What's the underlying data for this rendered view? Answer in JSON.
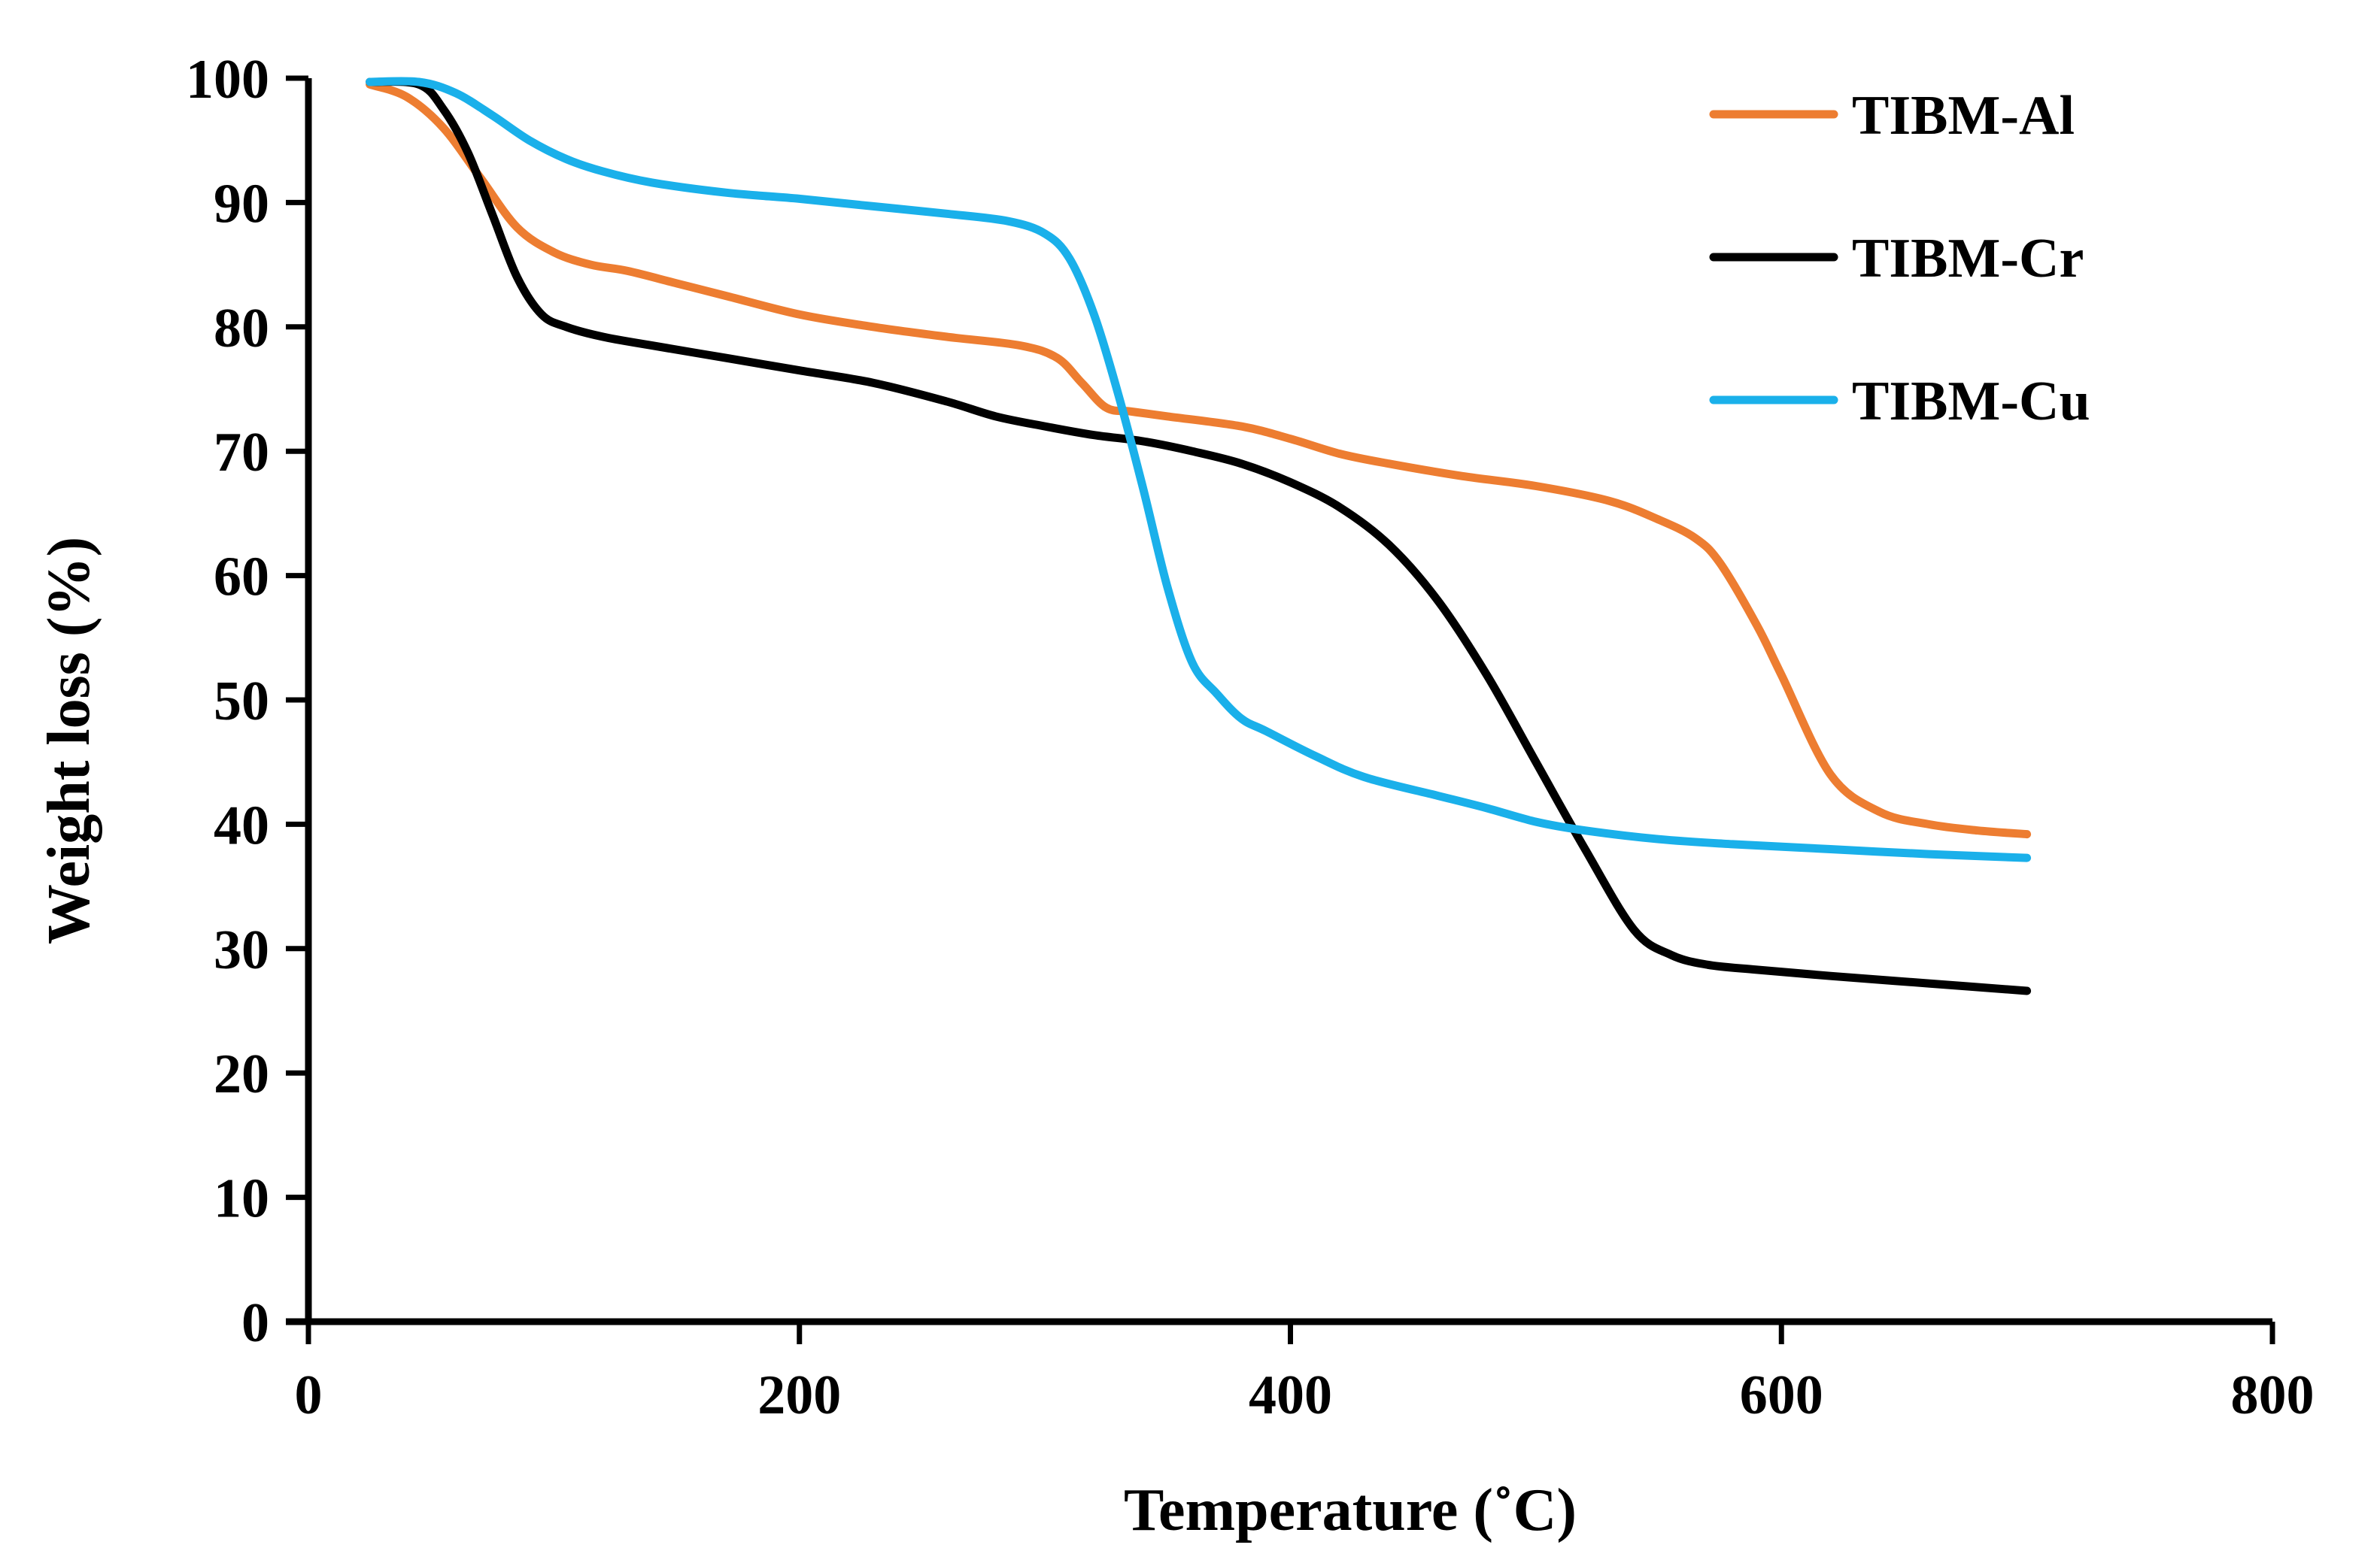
{
  "chart_data": {
    "type": "line",
    "title": "",
    "xlabel": "Temperature (˚C)",
    "ylabel": "Weight loss (%)",
    "xlim": [
      0,
      800
    ],
    "ylim": [
      0,
      100
    ],
    "xticks": [
      0,
      200,
      400,
      600,
      800
    ],
    "yticks": [
      0,
      10,
      20,
      30,
      40,
      50,
      60,
      70,
      80,
      90,
      100
    ],
    "grid": false,
    "legend_position": "top-right",
    "series": [
      {
        "name": "TIBM-Al",
        "color": "#ED7D31",
        "x": [
          25,
          40,
          55,
          70,
          85,
          100,
          115,
          130,
          150,
          170,
          200,
          230,
          260,
          290,
          305,
          315,
          325,
          335,
          350,
          380,
          400,
          420,
          440,
          470,
          500,
          530,
          550,
          565,
          575,
          590,
          600,
          620,
          640,
          660,
          680,
          700
        ],
        "y": [
          99.5,
          98.5,
          96,
          92,
          88,
          86,
          85,
          84.5,
          83.5,
          82.5,
          81,
          80,
          79.2,
          78.5,
          77.5,
          75.5,
          73.5,
          73.2,
          72.8,
          72,
          71,
          69.8,
          69,
          68,
          67.2,
          66,
          64.5,
          63,
          61,
          56,
          52,
          44,
          41,
          40,
          39.5,
          39.2
        ]
      },
      {
        "name": "TIBM-Cr",
        "color": "#000000",
        "x": [
          25,
          45,
          55,
          65,
          75,
          85,
          95,
          105,
          120,
          140,
          170,
          200,
          230,
          260,
          280,
          300,
          320,
          340,
          360,
          380,
          400,
          420,
          440,
          460,
          480,
          500,
          520,
          540,
          555,
          570,
          590,
          620,
          660,
          700
        ],
        "y": [
          99.7,
          99.5,
          97.5,
          94,
          89,
          84,
          81,
          80,
          79.2,
          78.5,
          77.5,
          76.5,
          75.5,
          74,
          72.8,
          72,
          71.3,
          70.8,
          70,
          69,
          67.5,
          65.5,
          62.5,
          58,
          52,
          45,
          38,
          31.5,
          29.5,
          28.7,
          28.3,
          27.8,
          27.2,
          26.6
        ]
      },
      {
        "name": "TIBM-Cu",
        "color": "#1AB0EA",
        "x": [
          25,
          45,
          60,
          75,
          90,
          105,
          120,
          140,
          170,
          200,
          230,
          260,
          285,
          300,
          310,
          320,
          330,
          340,
          350,
          360,
          370,
          380,
          390,
          410,
          430,
          460,
          480,
          500,
          520,
          550,
          580,
          620,
          660,
          700
        ],
        "y": [
          99.7,
          99.7,
          98.8,
          97,
          95,
          93.5,
          92.5,
          91.6,
          90.8,
          90.3,
          89.7,
          89.1,
          88.5,
          87.5,
          85.5,
          81,
          74.5,
          67,
          59,
          53,
          50.5,
          48.5,
          47.5,
          45.5,
          43.8,
          42.3,
          41.3,
          40.2,
          39.5,
          38.8,
          38.4,
          38,
          37.6,
          37.3
        ]
      }
    ]
  }
}
